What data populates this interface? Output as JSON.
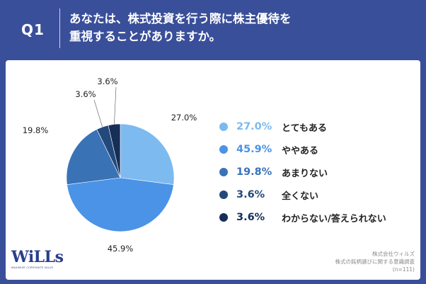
{
  "question": {
    "label": "Q1",
    "line1": "あなたは、株式投資を行う際に株主優待を",
    "line2": "重視することがありますか。"
  },
  "chart_data": {
    "type": "pie",
    "title": "あなたは、株式投資を行う際に株主優待を重視することがありますか。",
    "categories": [
      "とてもある",
      "ややある",
      "あまりない",
      "全くない",
      "わからない/答えられない"
    ],
    "values": [
      27.0,
      45.9,
      19.8,
      3.6,
      3.6
    ],
    "value_labels": [
      "27.0%",
      "45.9%",
      "19.8%",
      "3.6%",
      "3.6%"
    ],
    "colors": [
      "#7cbaf0",
      "#4b93e6",
      "#3a72b6",
      "#23497a",
      "#152f57"
    ],
    "legend_position": "right"
  },
  "source": {
    "company": "株式会社ウィルズ",
    "survey": "株式の銘柄選びに関する意識調査",
    "n": "(n=111)"
  },
  "logo": {
    "text": "WiLLs",
    "tagline": "MAXIMIZE CORPORATE VALUE"
  }
}
